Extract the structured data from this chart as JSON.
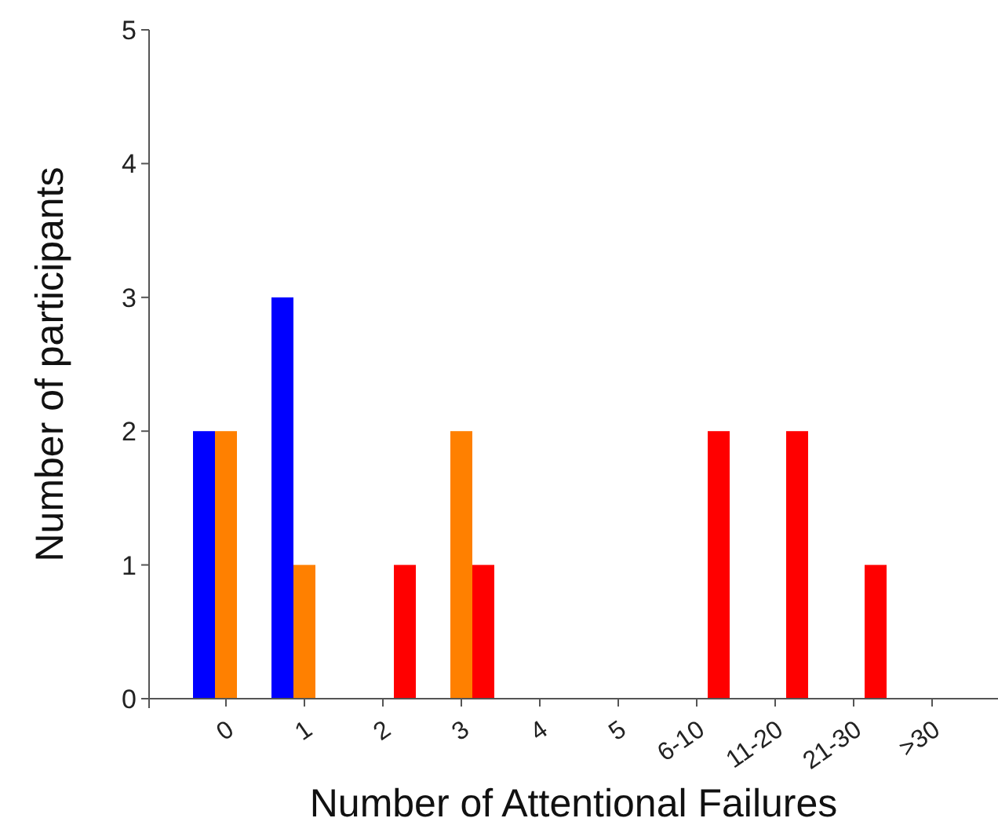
{
  "chart_data": {
    "type": "bar",
    "xlabel": "Number of Attentional Failures",
    "ylabel": "Number of participants",
    "categories": [
      "0",
      "1",
      "2",
      "3",
      "4",
      "5",
      "6-10",
      "11-20",
      "21-30",
      ">30"
    ],
    "series": [
      {
        "color": "#0000ff",
        "values": [
          2,
          3,
          0,
          0,
          0,
          0,
          0,
          0,
          0,
          0
        ]
      },
      {
        "color": "#ff8000",
        "values": [
          2,
          1,
          0,
          2,
          0,
          0,
          0,
          0,
          0,
          0
        ]
      },
      {
        "color": "#ff0000",
        "values": [
          0,
          0,
          1,
          1,
          0,
          0,
          2,
          2,
          1,
          0
        ]
      }
    ],
    "ylim": [
      0,
      5
    ],
    "yticks": [
      0,
      1,
      2,
      3,
      4,
      5
    ]
  }
}
